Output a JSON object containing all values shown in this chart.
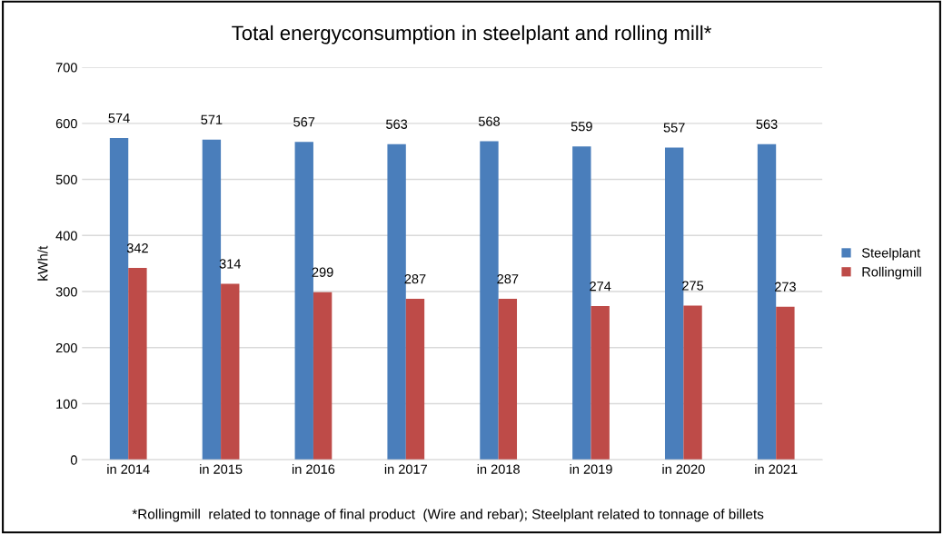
{
  "chart_data": {
    "type": "bar",
    "title": "Total energyconsumption in steelplant and rolling mill*",
    "ylabel": "kWh/t",
    "categories": [
      "in 2014",
      "in 2015",
      "in 2016",
      "in 2017",
      "in 2018",
      "in 2019",
      "in 2020",
      "in 2021"
    ],
    "series": [
      {
        "name": "Steelplant",
        "color": "#4a7ebb",
        "values": [
          574,
          571,
          567,
          563,
          568,
          559,
          557,
          563
        ]
      },
      {
        "name": "Rollingmill",
        "color": "#be4b48",
        "values": [
          342,
          314,
          299,
          287,
          287,
          274,
          275,
          273
        ]
      }
    ],
    "ylim": [
      0,
      700
    ],
    "yticks": [
      0,
      100,
      200,
      300,
      400,
      500,
      600,
      700
    ],
    "grid": "y",
    "legend": "right",
    "data_labels": true,
    "annotations": [
      "*Rollingmill  related to tonnage of final product  (Wire and rebar); Steelplant related to tonnage of billets"
    ]
  }
}
